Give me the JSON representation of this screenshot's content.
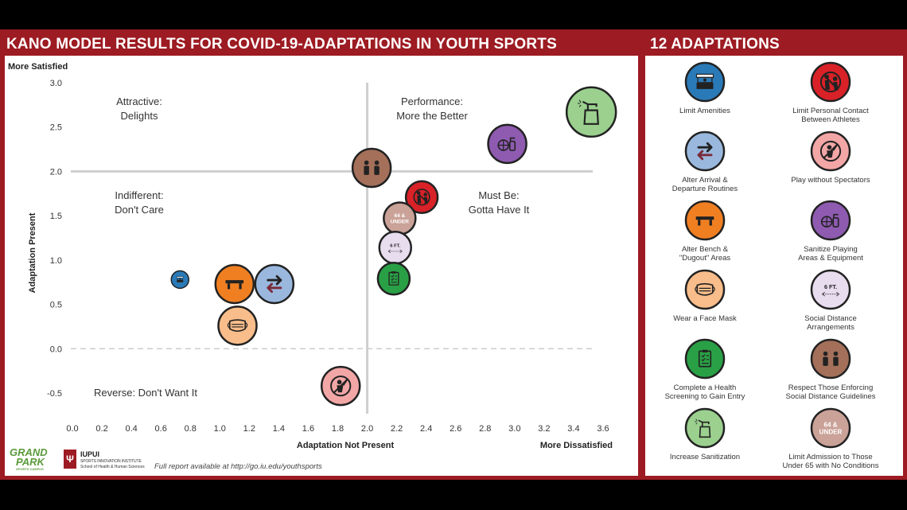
{
  "header": {
    "main_title": "KANO MODEL RESULTS FOR COVID-19-ADAPTATIONS IN YOUTH SPORTS",
    "side_title": "12 ADAPTATIONS"
  },
  "chart_data": {
    "type": "scatter",
    "title": "KANO MODEL RESULTS FOR COVID-19-ADAPTATIONS IN YOUTH SPORTS",
    "xlabel": "Adaptation Not Present",
    "ylabel": "Adaptation Present",
    "x_end_label": "More Dissatisfied",
    "y_end_label": "More Satisfied",
    "xlim": [
      0,
      3.6
    ],
    "ylim": [
      -0.5,
      3.0
    ],
    "x_ticks": [
      "0.0",
      "0.2",
      "0.4",
      "0.6",
      "0.8",
      "1.0",
      "1.2",
      "1.4",
      "1.6",
      "1.8",
      "2.0",
      "2.2",
      "2.4",
      "2.6",
      "2.8",
      "3.0",
      "3.2",
      "3.4",
      "3.6"
    ],
    "y_ticks": [
      "3.0",
      "2.5",
      "2.0",
      "1.5",
      "1.0",
      "0.5",
      "0.0",
      "-0.5"
    ],
    "quadrants": [
      {
        "line1": "Attractive:",
        "line2": "Delights"
      },
      {
        "line1": "Performance:",
        "line2": "More the Better"
      },
      {
        "line1": "Indifferent:",
        "line2": "Don't Care"
      },
      {
        "line1": "Must Be:",
        "line2": "Gotta Have It"
      },
      {
        "line1": "Reverse: Don't Want It",
        "line2": ""
      }
    ],
    "points": [
      {
        "name": "Limit Amenities",
        "x": 0.73,
        "y": 0.78,
        "size": "small",
        "color": "#2a7ab8",
        "icon": "booth-icon"
      },
      {
        "name": "Alter Bench & \"Dugout\" Areas",
        "x": 1.1,
        "y": 0.73,
        "size": "large",
        "color": "#f07f22",
        "icon": "bench-icon"
      },
      {
        "name": "Alter Arrival & Departure Routines",
        "x": 1.37,
        "y": 0.73,
        "size": "large",
        "color": "#9ab8de",
        "icon": "arrows-icon"
      },
      {
        "name": "Wear a Face Mask",
        "x": 1.12,
        "y": 0.26,
        "size": "large",
        "color": "#f8bd8a",
        "icon": "mask-icon"
      },
      {
        "name": "Play without Spectators",
        "x": 1.82,
        "y": -0.42,
        "size": "large",
        "color": "#f3a6a6",
        "icon": "no-spectators-icon"
      },
      {
        "name": "Respect Those Enforcing Social Distance Guidelines",
        "x": 2.03,
        "y": 2.04,
        "size": "large",
        "color": "#a4705a",
        "icon": "people-icon"
      },
      {
        "name": "Limit Personal Contact Between Athletes",
        "x": 2.37,
        "y": 1.71,
        "size": "medium",
        "color": "#d92128",
        "icon": "no-contact-icon"
      },
      {
        "name": "Limit Admission to Those Under 65 with No Conditions",
        "x": 2.22,
        "y": 1.47,
        "size": "medium",
        "color": "#caa298",
        "icon": "age-icon",
        "text1": "64 &",
        "text2": "UNDER"
      },
      {
        "name": "Social Distance Arrangements",
        "x": 2.19,
        "y": 1.14,
        "size": "medium",
        "color": "#e8dcef",
        "icon": "distance-icon",
        "text1": "6 FT."
      },
      {
        "name": "Complete a Health Screening to Gain Entry",
        "x": 2.18,
        "y": 0.79,
        "size": "medium",
        "color": "#2aa046",
        "icon": "clipboard-icon"
      },
      {
        "name": "Sanitize Playing Areas & Equipment",
        "x": 2.95,
        "y": 2.31,
        "size": "large",
        "color": "#8e5bb0",
        "icon": "ball-spray-icon"
      },
      {
        "name": "Increase Sanitization",
        "x": 3.52,
        "y": 2.67,
        "size": "xlarge",
        "color": "#9bd08f",
        "icon": "spray-bottle-icon"
      }
    ]
  },
  "legend": [
    {
      "label_line1": "Limit Amenities",
      "label_line2": "",
      "color": "#2a7ab8",
      "icon": "booth-icon"
    },
    {
      "label_line1": "Limit Personal Contact",
      "label_line2": "Between Athletes",
      "color": "#d92128",
      "icon": "no-contact-icon"
    },
    {
      "label_line1": "Alter Arrival &",
      "label_line2": "Departure Routines",
      "color": "#9ab8de",
      "icon": "arrows-icon"
    },
    {
      "label_line1": "Play without Spectators",
      "label_line2": "",
      "color": "#f3a6a6",
      "icon": "no-spectators-icon"
    },
    {
      "label_line1": "Alter Bench &",
      "label_line2": "\"Dugout\" Areas",
      "color": "#f07f22",
      "icon": "bench-icon"
    },
    {
      "label_line1": "Sanitize Playing",
      "label_line2": "Areas & Equipment",
      "color": "#8e5bb0",
      "icon": "ball-spray-icon"
    },
    {
      "label_line1": "Wear a Face Mask",
      "label_line2": "",
      "color": "#f8bd8a",
      "icon": "mask-icon"
    },
    {
      "label_line1": "Social Distance",
      "label_line2": "Arrangements",
      "color": "#e8dcef",
      "icon": "distance-icon",
      "text1": "6 FT."
    },
    {
      "label_line1": "Complete a Health",
      "label_line2": "Screening to Gain Entry",
      "color": "#2aa046",
      "icon": "clipboard-icon"
    },
    {
      "label_line1": "Respect Those Enforcing",
      "label_line2": "Social Distance Guidelines",
      "color": "#a4705a",
      "icon": "people-icon"
    },
    {
      "label_line1": "Increase Sanitization",
      "label_line2": "",
      "color": "#9bd08f",
      "icon": "spray-bottle-icon"
    },
    {
      "label_line1": "Limit Admission to Those",
      "label_line2": "Under 65 with No Conditions",
      "color": "#caa298",
      "icon": "age-icon",
      "text1": "64 &",
      "text2": "UNDER"
    }
  ],
  "footer": {
    "logo1_line1": "GRAND",
    "logo1_line2": "PARK",
    "logo1_line3": "SPORTS CAMPUS",
    "logo2_name": "IUPUI",
    "logo2_line1": "SPORTS INNOVATION INSTITUTE",
    "logo2_line2": "School of Health & Human Sciences",
    "report_note": "Full report available at http://go.iu.edu/youthsports"
  }
}
